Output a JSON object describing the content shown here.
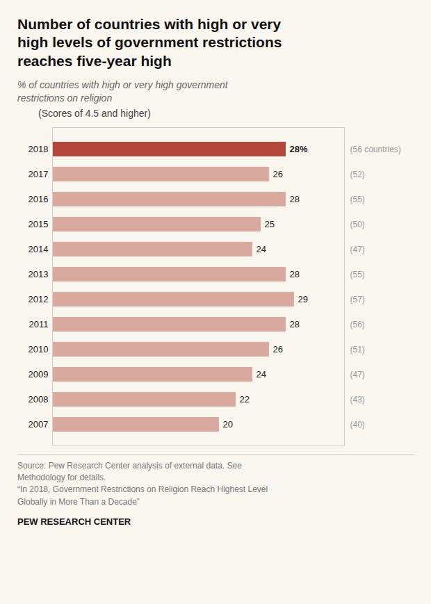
{
  "chart_data": {
    "type": "bar",
    "orientation": "horizontal",
    "title": "Number of countries with high or very\nhigh levels of government restrictions\nreaches five-year high",
    "subtitle": "% of countries with high or very high government\nrestrictions on religion",
    "note": "(Scores of 4.5 and higher)",
    "source": "Source: Pew Research Center analysis of external data. See\nMethodology for details.\n“In 2018, Government Restrictions on Religion Reach Highest Level\nGlobally in More Than a Decade”",
    "footer": "PEW RESEARCH CENTER",
    "categories": [
      "2018",
      "2017",
      "2016",
      "2015",
      "2014",
      "2013",
      "2012",
      "2011",
      "2010",
      "2009",
      "2008",
      "2007"
    ],
    "values": [
      28,
      26,
      28,
      25,
      24,
      28,
      29,
      28,
      26,
      24,
      22,
      20
    ],
    "value_labels": [
      "28%",
      "26",
      "28",
      "25",
      "24",
      "28",
      "29",
      "28",
      "26",
      "24",
      "22",
      "20"
    ],
    "countries": [
      56,
      52,
      55,
      50,
      47,
      55,
      57,
      56,
      51,
      47,
      43,
      40
    ],
    "country_labels": [
      "(56 countries)",
      "(52)",
      "(55)",
      "(50)",
      "(47)",
      "(55)",
      "(57)",
      "(56)",
      "(51)",
      "(47)",
      "(43)",
      "(40)"
    ],
    "colors": [
      "#b5473a",
      "#d9a9a0",
      "#d9a9a0",
      "#d9a9a0",
      "#d9a9a0",
      "#d9a9a0",
      "#d9a9a0",
      "#d9a9a0",
      "#d9a9a0",
      "#d9a9a0",
      "#d9a9a0",
      "#d9a9a0"
    ],
    "xlim": [
      0,
      35
    ],
    "data_labels": true,
    "tick_labels": "y",
    "grid": false
  }
}
